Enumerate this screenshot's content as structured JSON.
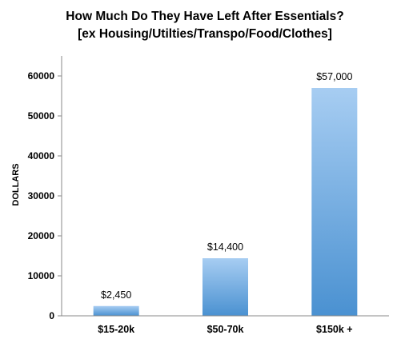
{
  "chart_data": {
    "type": "bar",
    "title": [
      "How Much Do They Have Left After Essentials?",
      "[ex Housing/Utilties/Transpo/Food/Clothes]"
    ],
    "xlabel": "",
    "ylabel": "DOLLARS",
    "categories": [
      "$15-20k",
      "$50-70k",
      "$150k +"
    ],
    "values": [
      2450,
      14400,
      57000
    ],
    "data_labels": [
      "$2,450",
      "$14,400",
      "$57,000"
    ],
    "ylim": [
      0,
      65000
    ],
    "yticks": [
      0,
      10000,
      20000,
      30000,
      40000,
      50000,
      60000
    ],
    "ytick_labels": [
      "0",
      "10000",
      "20000",
      "30000",
      "40000",
      "50000",
      "60000"
    ],
    "grid": false,
    "legend": "none",
    "colors": {
      "bar_top": "#a7cdf2",
      "bar_bottom": "#4a91d1",
      "axis": "#8a8a8a"
    }
  }
}
